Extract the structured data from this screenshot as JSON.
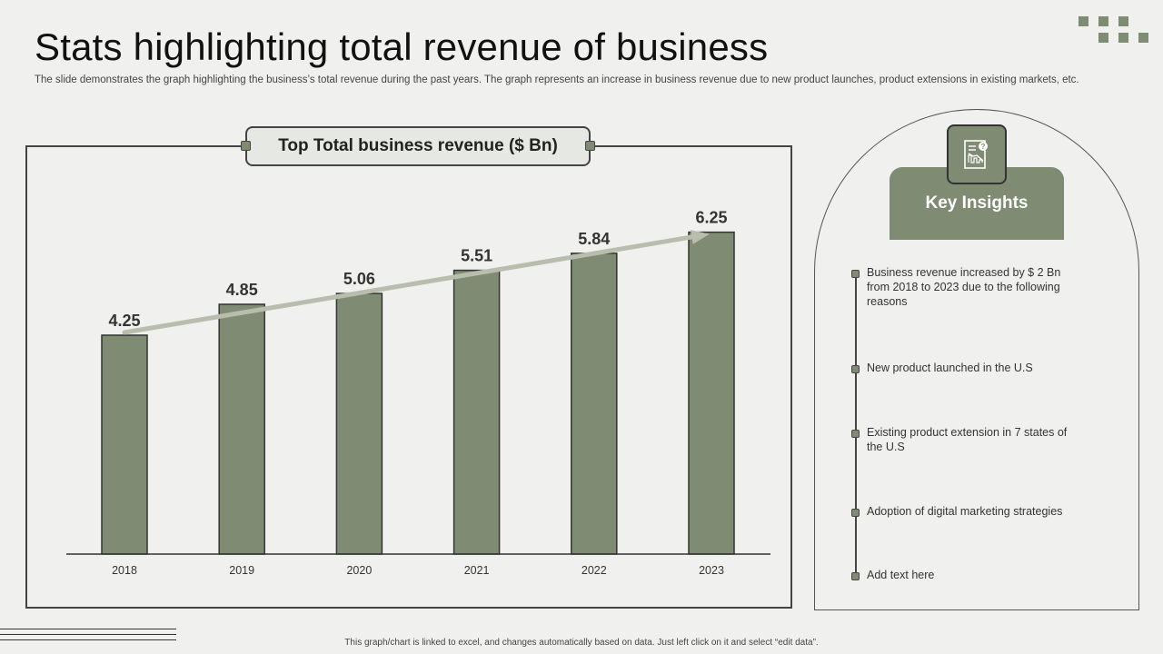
{
  "slide": {
    "title": "Stats highlighting total revenue of business",
    "subtitle": "The slide demonstrates the graph highlighting the business’s total revenue during the past years. The graph represents an increase in business revenue due to new product launches, product extensions in existing markets, etc.",
    "footer": "This graph/chart is linked to excel, and changes automatically based on data. Just left click on it and select “edit data”."
  },
  "chart_data": {
    "type": "bar",
    "title": "Top Total business revenue ($ Bn)",
    "categories": [
      "2018",
      "2019",
      "2020",
      "2021",
      "2022",
      "2023"
    ],
    "values": [
      4.25,
      4.85,
      5.06,
      5.51,
      5.84,
      6.25
    ],
    "data_labels": [
      "4.25",
      "4.85",
      "5.06",
      "5.51",
      "5.84",
      "6.25"
    ],
    "xlabel": "",
    "ylabel": "",
    "ylim": [
      0,
      7
    ],
    "grid": false,
    "trend_arrow": true,
    "bar_color": "#7f8b72",
    "arrow_color": "#b8bdad"
  },
  "insights": {
    "header": "Key Insights",
    "icon": "report-chart-icon",
    "items": [
      "Business revenue  increased by $ 2 Bn from 2018 to 2023 due to the following reasons",
      "New product launched in the U.S",
      "Existing product extension in 7 states of the U.S",
      "Adoption of digital marketing strategies",
      "Add text here"
    ]
  },
  "colors": {
    "accent": "#7f8b72",
    "background": "#f0f0ee",
    "outline": "#444444"
  }
}
